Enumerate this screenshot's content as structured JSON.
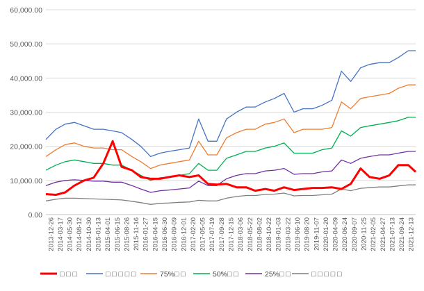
{
  "chart_data": {
    "type": "line",
    "ylim": [
      0,
      60000
    ],
    "y_ticks": [
      0,
      10000,
      20000,
      30000,
      40000,
      50000,
      60000
    ],
    "y_tick_labels": [
      "0.00",
      "10,000.00",
      "20,000.00",
      "30,000.00",
      "40,000.00",
      "50,000.00",
      "60,000.00"
    ],
    "x_ticks": [
      "2013-12-26",
      "2014-03-17",
      "2014-05-30",
      "2014-08-12",
      "2014-10-30",
      "2015-01-13",
      "2015-04-01",
      "2015-06-15",
      "2015-08-26",
      "2015-11-16",
      "2016-01-27",
      "2016-04-15",
      "2016-06-30",
      "2016-09-09",
      "2016-12-01",
      "2017-02-20",
      "2017-05-05",
      "2017-07-19",
      "2017-09-28",
      "2017-12-15",
      "2018-03-06",
      "2018-05-22",
      "2018-08-02",
      "2018-10-22",
      "2019-01-03",
      "2019-03-22",
      "2019-06-10",
      "2019-08-20",
      "2019-11-07",
      "2020-01-20",
      "2020-04-09",
      "2020-06-24",
      "2020-09-07",
      "2020-11-25",
      "2021-02-05",
      "2021-04-27",
      "2021-07-13",
      "2021-09-24",
      "2021-12-13"
    ],
    "x": [
      "2013-12-26",
      "2014-03-17",
      "2014-05-30",
      "2014-08-12",
      "2014-10-30",
      "2015-01-13",
      "2015-04-01",
      "2015-06-15",
      "2015-08-26",
      "2015-11-16",
      "2016-01-27",
      "2016-04-15",
      "2016-06-30",
      "2016-09-09",
      "2016-12-01",
      "2017-02-20",
      "2017-05-05",
      "2017-07-19",
      "2017-09-28",
      "2017-12-15",
      "2018-03-06",
      "2018-05-22",
      "2018-08-02",
      "2018-10-22",
      "2019-01-03",
      "2019-03-22",
      "2019-06-10",
      "2019-08-20",
      "2019-11-07",
      "2020-01-20",
      "2020-04-09",
      "2020-06-24",
      "2020-09-07",
      "2020-11-25",
      "2021-02-05",
      "2021-04-27",
      "2021-07-13",
      "2021-09-24",
      "2021-12-13",
      "2022-02-10"
    ],
    "grid": true,
    "legend_position": "bottom",
    "series": [
      {
        "name": "□ □ □",
        "color": "#ff0000",
        "width": 3,
        "values": [
          6000,
          5800,
          6500,
          8500,
          10000,
          10800,
          15000,
          21500,
          14000,
          13000,
          11000,
          10500,
          10500,
          11000,
          11500,
          11000,
          11500,
          9000,
          8800,
          9000,
          8000,
          8000,
          7000,
          7500,
          7000,
          8000,
          7200,
          7500,
          7800,
          7800,
          8000,
          7500,
          9000,
          13500,
          11000,
          10500,
          11500,
          14500,
          14500,
          12500
        ]
      },
      {
        "name": "□ □ □ □ □",
        "color": "#4472c4",
        "width": 1.3,
        "values": [
          22000,
          25000,
          26500,
          27000,
          26000,
          25000,
          25000,
          24500,
          24000,
          22000,
          20000,
          17000,
          18000,
          18500,
          19000,
          19500,
          28000,
          21500,
          21500,
          28000,
          30000,
          31500,
          31500,
          33000,
          34000,
          35500,
          30000,
          31000,
          31000,
          32000,
          33500,
          42000,
          39000,
          43000,
          44000,
          44500,
          44500,
          46000,
          48000,
          48000
        ]
      },
      {
        "name": "75%□ □",
        "color": "#ed7d31",
        "width": 1.3,
        "values": [
          17000,
          19000,
          20500,
          21000,
          20000,
          19500,
          19500,
          19000,
          19000,
          17000,
          15500,
          13500,
          14500,
          15000,
          15500,
          16000,
          21500,
          17500,
          17500,
          22500,
          24000,
          25000,
          25000,
          26500,
          27000,
          28000,
          24000,
          25000,
          25000,
          25000,
          25500,
          33000,
          31000,
          34000,
          34500,
          35000,
          35500,
          37000,
          38000,
          38000
        ]
      },
      {
        "name": "50%□ □",
        "color": "#00b050",
        "width": 1.3,
        "values": [
          13000,
          14500,
          15500,
          16000,
          15500,
          15000,
          15000,
          14500,
          14500,
          13000,
          11500,
          10000,
          10800,
          11000,
          11500,
          12000,
          15000,
          13000,
          13000,
          16500,
          17500,
          18500,
          18500,
          19500,
          20000,
          21000,
          18000,
          18000,
          18000,
          19000,
          19500,
          24500,
          23000,
          25500,
          26000,
          26500,
          27000,
          27500,
          28500,
          28500
        ]
      },
      {
        "name": "25%□ □",
        "color": "#7030a0",
        "width": 1.3,
        "values": [
          8500,
          9500,
          10000,
          10200,
          10000,
          9800,
          9800,
          9500,
          9500,
          8500,
          7500,
          6500,
          7000,
          7200,
          7500,
          7800,
          9800,
          8500,
          8500,
          10500,
          11500,
          12000,
          12000,
          12800,
          13000,
          13500,
          11800,
          12000,
          12000,
          12500,
          12800,
          16000,
          15000,
          16500,
          17000,
          17500,
          17500,
          18000,
          18500,
          18500
        ]
      },
      {
        "name": "□ □ □ □ □",
        "color": "#7f7f7f",
        "width": 1.3,
        "values": [
          4000,
          4500,
          4800,
          4800,
          4700,
          4600,
          4500,
          4400,
          4300,
          3900,
          3500,
          3000,
          3300,
          3400,
          3600,
          3700,
          4200,
          4000,
          4000,
          4800,
          5300,
          5600,
          5600,
          5900,
          6000,
          6300,
          5500,
          5600,
          5600,
          5800,
          6000,
          7500,
          7000,
          7700,
          7900,
          8100,
          8100,
          8400,
          8700,
          8700
        ]
      }
    ]
  }
}
